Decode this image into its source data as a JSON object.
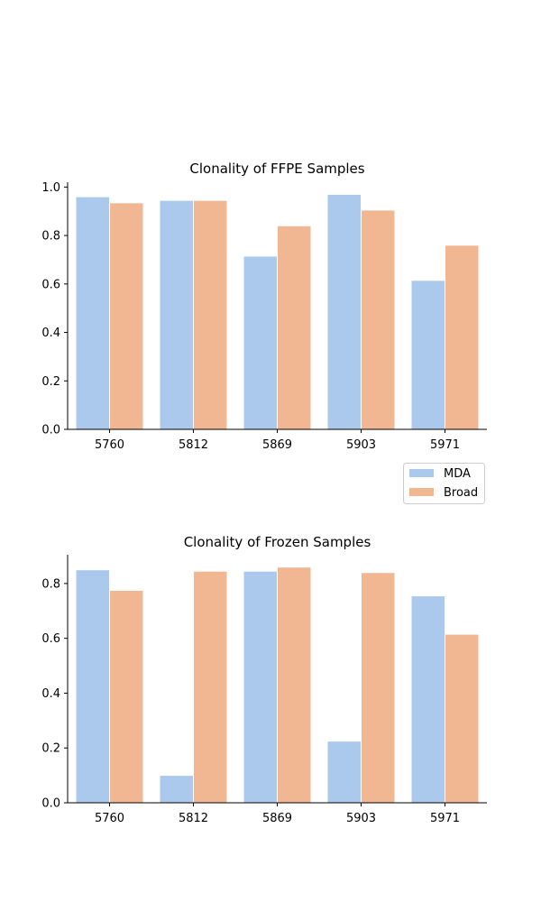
{
  "colors": {
    "MDA": "#abc9ec",
    "Broad": "#f0b792",
    "axis": "#000000"
  },
  "legend": {
    "entries": [
      {
        "label": "MDA",
        "color": "#abc9ec"
      },
      {
        "label": "Broad",
        "color": "#f0b792"
      }
    ],
    "placement": "between-charts-right"
  },
  "chart_data": [
    {
      "type": "bar",
      "title": "Clonality of FFPE Samples",
      "categories": [
        "5760",
        "5812",
        "5869",
        "5903",
        "5971"
      ],
      "series": [
        {
          "name": "MDA",
          "values": [
            0.96,
            0.945,
            0.715,
            0.97,
            0.615
          ]
        },
        {
          "name": "Broad",
          "values": [
            0.935,
            0.945,
            0.84,
            0.905,
            0.76
          ]
        }
      ],
      "ylim": [
        0,
        1.02
      ],
      "yticks": [
        0.0,
        0.2,
        0.4,
        0.6,
        0.8,
        1.0
      ],
      "ytick_labels": [
        "0.0",
        "0.2",
        "0.4",
        "0.6",
        "0.8",
        "1.0"
      ],
      "xlabel": "",
      "ylabel": "",
      "grid": false
    },
    {
      "type": "bar",
      "title": "Clonality of Frozen Samples",
      "categories": [
        "5760",
        "5812",
        "5869",
        "5903",
        "5971"
      ],
      "series": [
        {
          "name": "MDA",
          "values": [
            0.85,
            0.1,
            0.845,
            0.225,
            0.755
          ]
        },
        {
          "name": "Broad",
          "values": [
            0.775,
            0.845,
            0.86,
            0.84,
            0.615
          ]
        }
      ],
      "ylim": [
        0,
        0.905
      ],
      "yticks": [
        0.0,
        0.2,
        0.4,
        0.6,
        0.8
      ],
      "ytick_labels": [
        "0.0",
        "0.2",
        "0.4",
        "0.6",
        "0.8"
      ],
      "xlabel": "",
      "ylabel": "",
      "grid": false
    }
  ]
}
